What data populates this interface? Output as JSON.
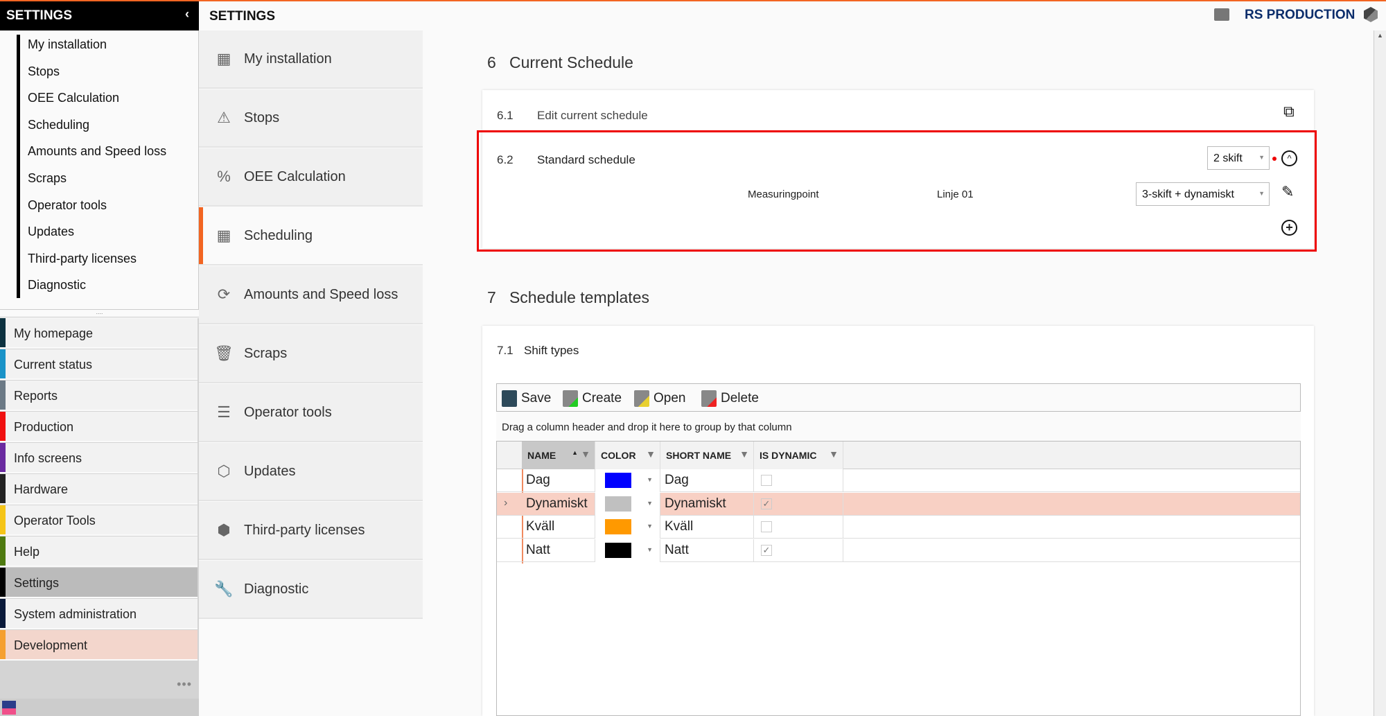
{
  "sidebar": {
    "title": "SETTINGS",
    "collapse_icon": "chevron-left-icon",
    "submenu": [
      "My installation",
      "Stops",
      "OEE Calculation",
      "Scheduling",
      "Amounts and Speed loss",
      "Scraps",
      "Operator tools",
      "Updates",
      "Third-party licenses",
      "Diagnostic"
    ],
    "nav": [
      {
        "label": "My homepage",
        "color": "#0d3240"
      },
      {
        "label": "Current status",
        "color": "#1a93c8"
      },
      {
        "label": "Reports",
        "color": "#6c7a86"
      },
      {
        "label": "Production",
        "color": "#f01010"
      },
      {
        "label": "Info screens",
        "color": "#6a2aa0"
      },
      {
        "label": "Hardware",
        "color": "#222222"
      },
      {
        "label": "Operator Tools",
        "color": "#f5c518"
      },
      {
        "label": "Help",
        "color": "#4e7a10"
      },
      {
        "label": "Settings",
        "color": "#000000",
        "selected": true
      },
      {
        "label": "System administration",
        "color": "#0a1a3a"
      },
      {
        "label": "Development",
        "color": "#f5a030",
        "highlight": true
      }
    ],
    "more": "•••"
  },
  "header": {
    "title": "SETTINGS",
    "brand": "RS PRODUCTION"
  },
  "middle_nav": [
    {
      "label": "My installation",
      "icon": "building-icon",
      "glyph": "▦"
    },
    {
      "label": "Stops",
      "icon": "warning-icon",
      "glyph": "⚠"
    },
    {
      "label": "OEE Calculation",
      "icon": "percent-icon",
      "glyph": "%"
    },
    {
      "label": "Scheduling",
      "icon": "calendar-icon",
      "glyph": "▦",
      "active": true
    },
    {
      "label": "Amounts and Speed loss",
      "icon": "refresh-icon",
      "glyph": "⟳"
    },
    {
      "label": "Scraps",
      "icon": "trash-icon",
      "glyph": "🗑"
    },
    {
      "label": "Operator tools",
      "icon": "document-search-icon",
      "glyph": "☰"
    },
    {
      "label": "Updates",
      "icon": "box-icon",
      "glyph": "⬡"
    },
    {
      "label": "Third-party licenses",
      "icon": "cube-icon",
      "glyph": "⬢"
    },
    {
      "label": "Diagnostic",
      "icon": "wrench-icon",
      "glyph": "🔧"
    }
  ],
  "section6": {
    "num": "6",
    "title": "Current Schedule",
    "row1": {
      "num": "6.1",
      "label": "Edit current schedule"
    },
    "row2": {
      "num": "6.2",
      "label": "Standard schedule",
      "select": "2 skift",
      "mp_label": "Measuringpoint",
      "mp_value": "Linje 01",
      "mp_select": "3-skift + dynamiskt"
    }
  },
  "section7": {
    "num": "7",
    "title": "Schedule templates",
    "sub": {
      "num": "7.1",
      "label": "Shift types"
    },
    "toolbar": {
      "save": "Save",
      "create": "Create",
      "open": "Open",
      "delete": "Delete"
    },
    "group_hint": "Drag a column header and drop it here to group by that column",
    "columns": [
      "NAME",
      "COLOR",
      "SHORT NAME",
      "IS DYNAMIC"
    ],
    "rows": [
      {
        "name": "Dag",
        "color": "#0000ff",
        "short": "Dag",
        "dynamic": false
      },
      {
        "name": "Dynamiskt",
        "color": "#c0c0c0",
        "short": "Dynamiskt",
        "dynamic": true,
        "selected": true
      },
      {
        "name": "Kväll",
        "color": "#ff9900",
        "short": "Kväll",
        "dynamic": false
      },
      {
        "name": "Natt",
        "color": "#000000",
        "short": "Natt",
        "dynamic": true
      }
    ]
  },
  "colors": {
    "accent": "#f26522",
    "selected_row": "#f8d0c4",
    "highlight_box": "#e00000",
    "brand": "#0b2d6b"
  }
}
